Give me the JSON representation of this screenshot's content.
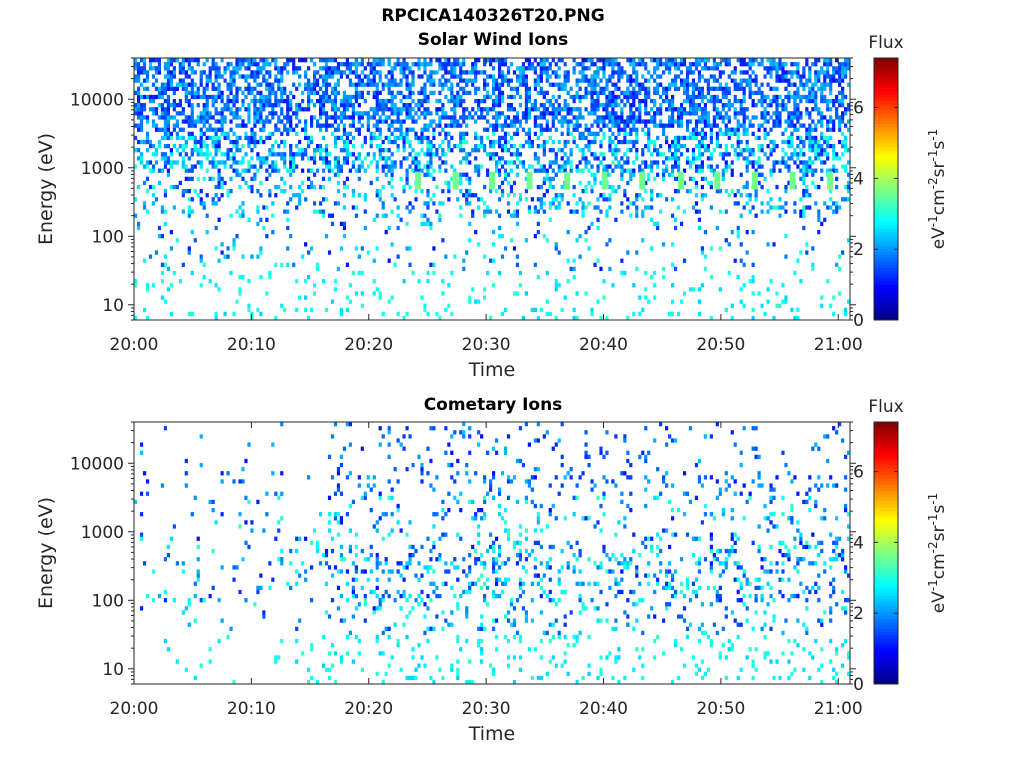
{
  "figure": {
    "title": "RPCICA140326T20.PNG"
  },
  "chart_data": [
    {
      "type": "heatmap",
      "title": "Solar Wind Ions",
      "xlabel": "Time",
      "ylabel": "Energy (eV)",
      "x_ticks": [
        "20:00",
        "20:10",
        "20:20",
        "20:30",
        "20:40",
        "20:50",
        "21:00"
      ],
      "x_range_minutes": [
        0,
        61
      ],
      "y_scale": "log",
      "y_ticks": [
        10,
        100,
        1000,
        10000
      ],
      "y_tick_labels": [
        "10",
        "100",
        "1000",
        "10000"
      ],
      "y_range": [
        6,
        40000
      ],
      "colorbar": {
        "label": "Flux",
        "unit": "eV-1cm-2sr-1s-1",
        "ticks": [
          0,
          2,
          4,
          6
        ],
        "range": [
          0,
          7.4
        ],
        "colormap": "jet"
      },
      "features": {
        "peak_energy_eV": 650,
        "peak_times_minutes": [
          24.2,
          27.4,
          30.5,
          33.7,
          36.9,
          40.1,
          43.3,
          46.6,
          49.7,
          52.9,
          56.1,
          59.3
        ],
        "peak_flux": 3.6,
        "background_flux_range": [
          1.0,
          3.2
        ],
        "high_energy_density": 0.55
      }
    },
    {
      "type": "heatmap",
      "title": "Cometary Ions",
      "xlabel": "Time",
      "ylabel": "Energy (eV)",
      "x_ticks": [
        "20:00",
        "20:10",
        "20:20",
        "20:30",
        "20:40",
        "20:50",
        "21:00"
      ],
      "x_range_minutes": [
        0,
        61
      ],
      "y_scale": "log",
      "y_ticks": [
        10,
        100,
        1000,
        10000
      ],
      "y_tick_labels": [
        "10",
        "100",
        "1000",
        "10000"
      ],
      "y_range": [
        6,
        40000
      ],
      "colorbar": {
        "label": "Flux",
        "unit": "eV-1cm-2sr-1s-1",
        "ticks": [
          0,
          2,
          4,
          6
        ],
        "range": [
          0,
          7.4
        ],
        "colormap": "jet"
      },
      "features": {
        "background_flux_range": [
          1.0,
          3.2
        ],
        "high_energy_density": 0.07,
        "low_energy_density": 0.35
      }
    }
  ]
}
